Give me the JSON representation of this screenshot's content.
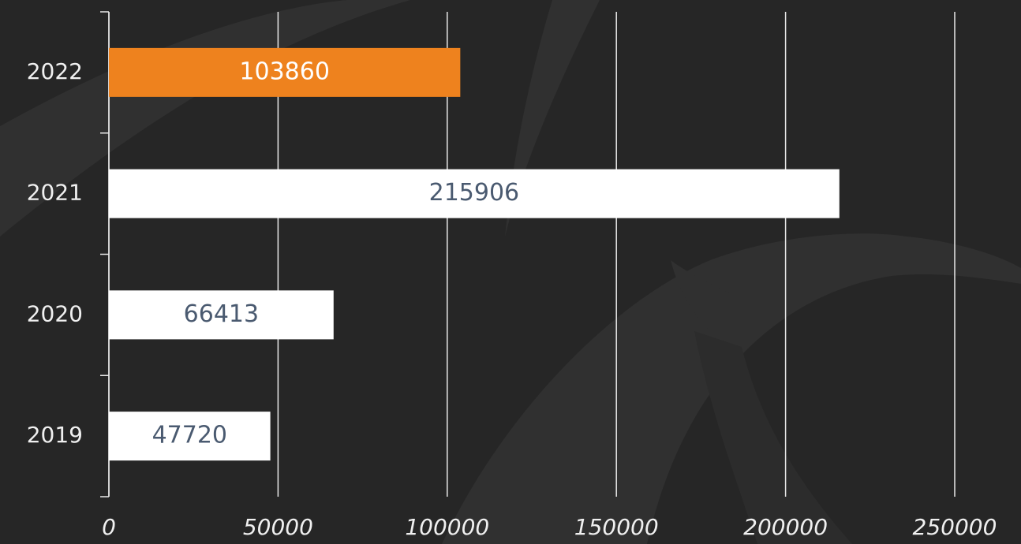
{
  "chart_data": {
    "type": "hbar",
    "categories": [
      "2022",
      "2021",
      "2020",
      "2019"
    ],
    "values": [
      103860,
      215906,
      66413,
      47720
    ],
    "colors": [
      "#ee821e",
      "#ffffff",
      "#ffffff",
      "#ffffff"
    ],
    "label_colors": [
      "#ffffff",
      "#4a5a70",
      "#4a5a70",
      "#4a5a70"
    ],
    "xlim": [
      0,
      250000
    ],
    "xticks": [
      0,
      50000,
      100000,
      150000,
      200000,
      250000
    ],
    "grid": true
  }
}
